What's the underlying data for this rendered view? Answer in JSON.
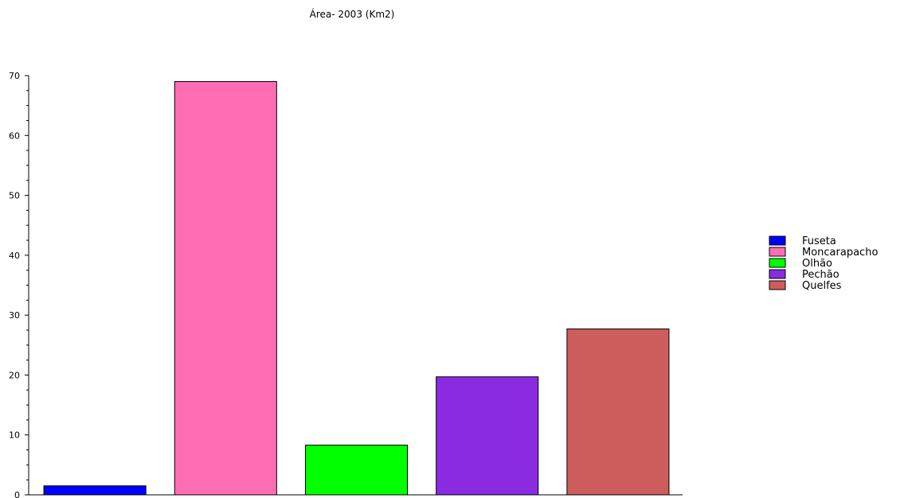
{
  "chart_data": {
    "type": "bar",
    "title": "Área- 2003 (Km2)",
    "xlabel": "",
    "ylabel": "",
    "ylim": [
      0,
      70
    ],
    "yticks": [
      0,
      10,
      20,
      30,
      40,
      50,
      60,
      70
    ],
    "grid": false,
    "legend_position": "right",
    "categories": [
      "Fuseta",
      "Moncarapacho",
      "Olhão",
      "Pechão",
      "Quelfes"
    ],
    "values": [
      1.5,
      69,
      8.3,
      19.7,
      27.7
    ],
    "colors": [
      "#0000ff",
      "#ff6eb4",
      "#00ff00",
      "#8a2be2",
      "#cd5c5c"
    ]
  }
}
